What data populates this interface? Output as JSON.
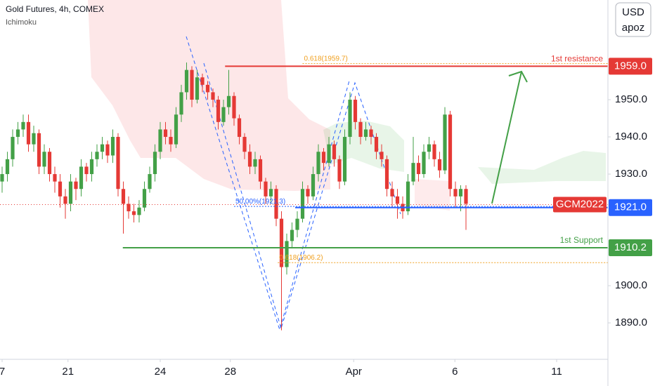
{
  "header": {
    "title": "Gold Futures, 4h, COMEX",
    "indicator": "Ichimoku"
  },
  "currency_button": {
    "line1": "USD",
    "line2": "apoz"
  },
  "chart_data": {
    "type": "candlestick",
    "up_color": "#43a047",
    "down_color": "#e53935",
    "ohlc": [
      [
        1928,
        1932,
        1925,
        1930
      ],
      [
        1930,
        1936,
        1928,
        1934
      ],
      [
        1934,
        1942,
        1932,
        1940
      ],
      [
        1940,
        1944,
        1938,
        1942
      ],
      [
        1942,
        1946,
        1940,
        1944
      ],
      [
        1944,
        1946,
        1936,
        1938
      ],
      [
        1938,
        1943,
        1936,
        1941
      ],
      [
        1941,
        1942,
        1930,
        1932
      ],
      [
        1932,
        1938,
        1930,
        1936
      ],
      [
        1936,
        1937,
        1928,
        1930
      ],
      [
        1930,
        1932,
        1925,
        1928
      ],
      [
        1928,
        1930,
        1921,
        1924
      ],
      [
        1924,
        1926,
        1918,
        1922
      ],
      [
        1922,
        1930,
        1920,
        1928
      ],
      [
        1928,
        1929,
        1923,
        1926
      ],
      [
        1926,
        1934,
        1924,
        1932
      ],
      [
        1932,
        1933,
        1928,
        1930
      ],
      [
        1930,
        1936,
        1928,
        1934
      ],
      [
        1934,
        1938,
        1932,
        1936
      ],
      [
        1936,
        1940,
        1934,
        1938
      ],
      [
        1938,
        1939,
        1933,
        1935
      ],
      [
        1935,
        1942,
        1933,
        1940
      ],
      [
        1940,
        1941,
        1924,
        1926
      ],
      [
        1926,
        1928,
        1914,
        1922
      ],
      [
        1922,
        1924,
        1918,
        1920
      ],
      [
        1920,
        1922,
        1917,
        1919
      ],
      [
        1919,
        1923,
        1917,
        1921
      ],
      [
        1921,
        1928,
        1920,
        1926
      ],
      [
        1926,
        1932,
        1925,
        1930
      ],
      [
        1930,
        1938,
        1928,
        1936
      ],
      [
        1936,
        1944,
        1934,
        1942
      ],
      [
        1942,
        1944,
        1938,
        1940
      ],
      [
        1940,
        1942,
        1936,
        1938
      ],
      [
        1938,
        1948,
        1937,
        1946
      ],
      [
        1946,
        1954,
        1944,
        1952
      ],
      [
        1952,
        1960,
        1950,
        1958
      ],
      [
        1958,
        1959,
        1948,
        1950
      ],
      [
        1950,
        1958,
        1949,
        1956
      ],
      [
        1956,
        1957,
        1952,
        1954
      ],
      [
        1954,
        1955,
        1950,
        1952
      ],
      [
        1952,
        1953,
        1948,
        1950
      ],
      [
        1950,
        1951,
        1942,
        1944
      ],
      [
        1944,
        1950,
        1943,
        1948
      ],
      [
        1948,
        1958,
        1946,
        1951
      ],
      [
        1951,
        1952,
        1943,
        1945
      ],
      [
        1945,
        1946,
        1938,
        1940
      ],
      [
        1940,
        1941,
        1934,
        1936
      ],
      [
        1936,
        1938,
        1930,
        1932
      ],
      [
        1932,
        1936,
        1930,
        1934
      ],
      [
        1934,
        1935,
        1926,
        1928
      ],
      [
        1928,
        1929,
        1922,
        1924
      ],
      [
        1924,
        1928,
        1922,
        1926
      ],
      [
        1926,
        1927,
        1916,
        1918
      ],
      [
        1918,
        1920,
        1888,
        1905
      ],
      [
        1905,
        1914,
        1903,
        1912
      ],
      [
        1912,
        1917,
        1910,
        1915
      ],
      [
        1915,
        1920,
        1913,
        1918
      ],
      [
        1918,
        1928,
        1917,
        1926
      ],
      [
        1926,
        1927,
        1922,
        1924
      ],
      [
        1924,
        1932,
        1923,
        1930
      ],
      [
        1930,
        1938,
        1928,
        1936
      ],
      [
        1936,
        1937,
        1931,
        1933
      ],
      [
        1933,
        1940,
        1932,
        1938
      ],
      [
        1938,
        1939,
        1932,
        1934
      ],
      [
        1934,
        1935,
        1926,
        1928
      ],
      [
        1928,
        1942,
        1927,
        1940
      ],
      [
        1940,
        1952,
        1938,
        1950
      ],
      [
        1950,
        1951,
        1942,
        1944
      ],
      [
        1944,
        1945,
        1938,
        1940
      ],
      [
        1940,
        1944,
        1939,
        1942
      ],
      [
        1942,
        1943,
        1938,
        1940
      ],
      [
        1940,
        1941,
        1934,
        1936
      ],
      [
        1936,
        1938,
        1932,
        1934
      ],
      [
        1934,
        1935,
        1924,
        1926
      ],
      [
        1926,
        1928,
        1921,
        1924
      ],
      [
        1924,
        1926,
        1918,
        1922
      ],
      [
        1922,
        1924,
        1918,
        1920
      ],
      [
        1920,
        1930,
        1919,
        1928
      ],
      [
        1928,
        1940,
        1927,
        1933
      ],
      [
        1933,
        1935,
        1928,
        1930
      ],
      [
        1930,
        1938,
        1929,
        1936
      ],
      [
        1936,
        1940,
        1934,
        1938
      ],
      [
        1938,
        1939,
        1932,
        1934
      ],
      [
        1934,
        1936,
        1929,
        1931
      ],
      [
        1931,
        1948,
        1930,
        1946
      ],
      [
        1946,
        1947,
        1924,
        1926
      ],
      [
        1926,
        1928,
        1921,
        1924
      ],
      [
        1924,
        1927,
        1920,
        1926
      ],
      [
        1926,
        1927,
        1915,
        1922
      ]
    ],
    "xlim": [
      -0.4,
      114.93
    ],
    "xticks": [
      {
        "value": 0,
        "label": "7"
      },
      {
        "value": 12.5,
        "label": "21"
      },
      {
        "value": 30,
        "label": "24"
      },
      {
        "value": 43.3,
        "label": "28"
      },
      {
        "value": 66.7,
        "label": "Apr"
      },
      {
        "value": 85.9,
        "label": "6"
      },
      {
        "value": 105.2,
        "label": "11"
      }
    ],
    "ylim": [
      1880.2,
      1976.8
    ],
    "yticks": [
      {
        "value": 1890,
        "label": "1890.0"
      },
      {
        "value": 1900,
        "label": "1900.0"
      },
      {
        "value": 1910,
        "label": "1910.0"
      },
      {
        "value": 1920,
        "label": "1920.0"
      },
      {
        "value": 1930,
        "label": "1930.0"
      },
      {
        "value": 1940,
        "label": "1940.0"
      },
      {
        "value": 1950,
        "label": "1950.0"
      }
    ],
    "levels": [
      {
        "name": "1st resistance",
        "value": 1959,
        "value_label": "1959.0",
        "color": "#e53935",
        "x_start": 42.3
      },
      {
        "value": 1921,
        "value_label": "1921.0",
        "color": "#2962ff",
        "x_start": 55.6
      },
      {
        "name": "1st Support",
        "value": 1910.2,
        "value_label": "1910.2",
        "color": "#43a047",
        "x_start": 22.9
      }
    ],
    "fib_levels": [
      {
        "label": "0.618(1959.7)",
        "value": 1959.7,
        "color": "#f0a020",
        "x_start": 57
      },
      {
        "label": "50.00%(1921.3)",
        "value": 1921.3,
        "color": "#2962ff",
        "x_start": 44
      },
      {
        "label": "0.618(1906.2)",
        "value": 1906.2,
        "color": "#f0a020",
        "x_start": 52.3
      }
    ],
    "symbol_tag": {
      "label": "GCM2022",
      "value": 1921.8,
      "color": "#e53935"
    }
  }
}
